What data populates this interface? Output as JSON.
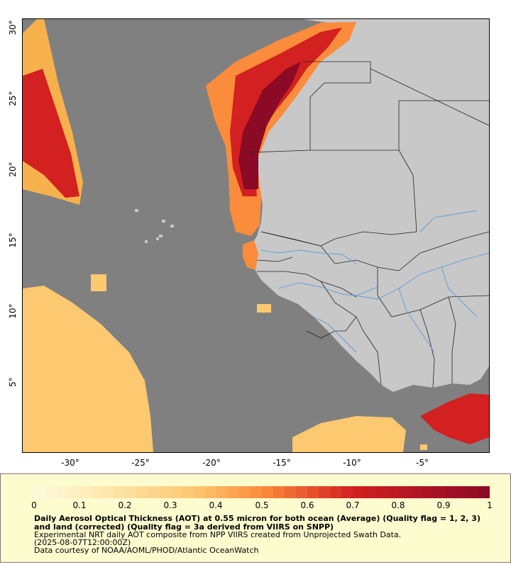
{
  "map": {
    "lat_labels": [
      "30°",
      "25°",
      "20°",
      "15°",
      "10°",
      "5°"
    ],
    "lon_labels": [
      "-30°",
      "-25°",
      "-20°",
      "-15°",
      "-10°",
      "-5°"
    ],
    "colors": {
      "ocean": "#808080",
      "land": "#c8c8c8",
      "borders": "#222222",
      "rivers": "#5b9bd5",
      "aot_low": "#ffe8b0",
      "aot_mid": "#fb8c3c",
      "aot_high": "#d32020",
      "aot_max": "#8b0a26"
    }
  },
  "legend": {
    "colorbar_ticks": [
      "0",
      "0.1",
      "0.2",
      "0.3",
      "0.4",
      "0.5",
      "0.6",
      "0.7",
      "0.8",
      "0.9",
      "1"
    ],
    "title": "Daily Aerosol Optical Thickness (AOT) at 0.55 micron for both ocean (Average) (Quality flag = 1, 2, 3) and land (corrected) (Quality flag = 3a derived from VIIRS on SNPP)",
    "line1": "Experimental NRT daily AOT composite from NPP VIIRS created from Unprojected Swath Data.",
    "line2": "(2025-08-07T12:00:00Z)",
    "line3": "Data courtesy of NOAA/AOML/PHOD/Atlantic OceanWatch"
  }
}
